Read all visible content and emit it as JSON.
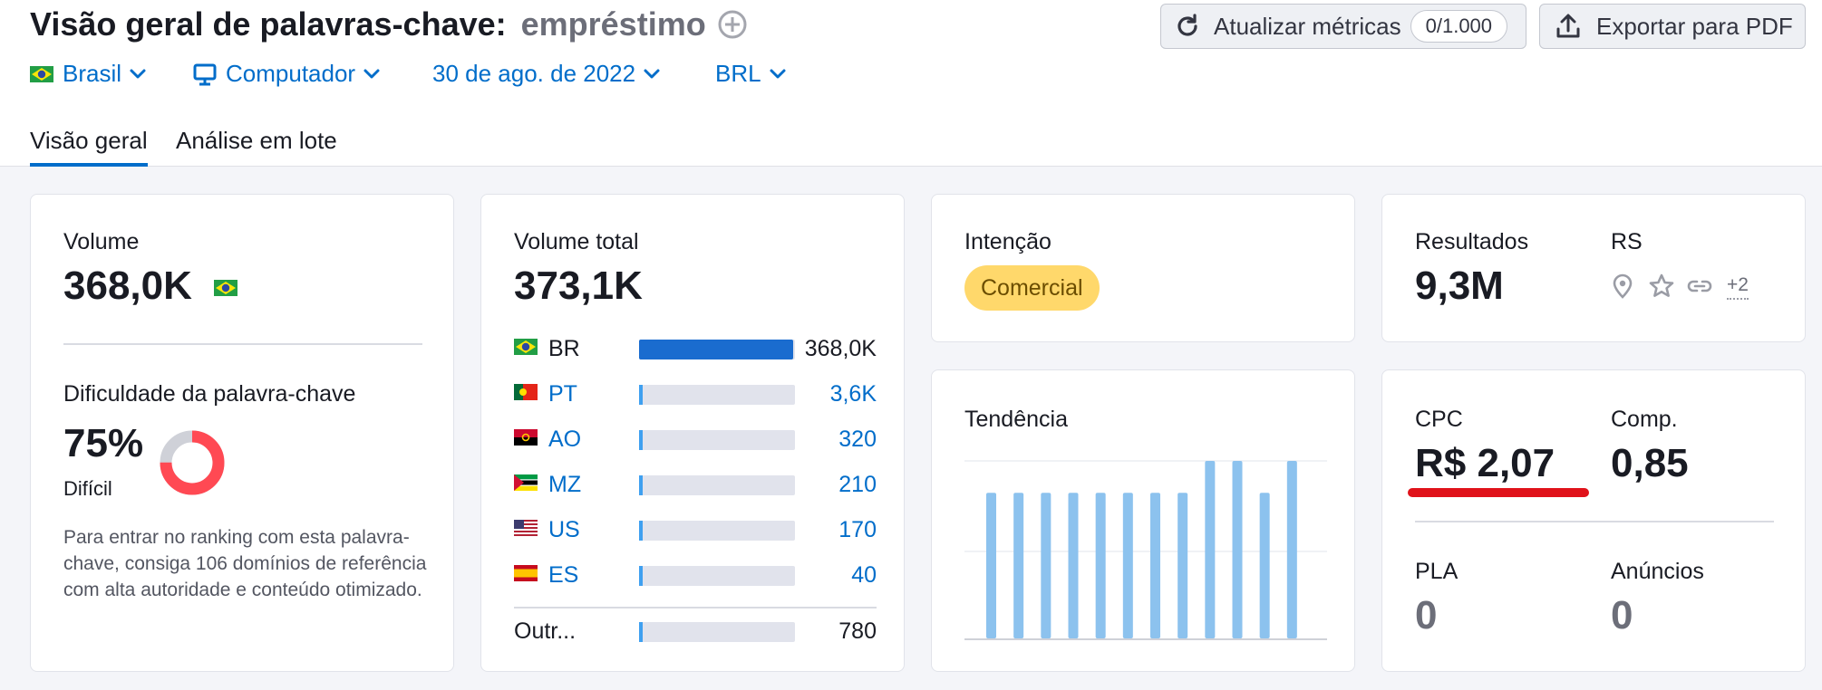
{
  "header": {
    "title": "Visão geral de palavras-chave:",
    "keyword": "empréstimo",
    "refresh_label": "Atualizar métricas",
    "refresh_counter": "0/1.000",
    "export_label": "Exportar para PDF"
  },
  "filters": {
    "country": "Brasil",
    "device": "Computador",
    "date": "30 de ago. de 2022",
    "currency": "BRL"
  },
  "tabs": [
    {
      "label": "Visão geral",
      "active": true
    },
    {
      "label": "Análise em lote",
      "active": false
    }
  ],
  "volume_card": {
    "label": "Volume",
    "value": "368,0K",
    "difficulty_label": "Dificuldade da palavra-chave",
    "difficulty_value": "75%",
    "difficulty_percent": 75,
    "difficulty_level": "Difícil",
    "description": "Para entrar no ranking com esta palavra-chave, consiga 106 domínios de referência com alta autoridade e conteúdo otimizado."
  },
  "total_volume_card": {
    "label": "Volume total",
    "value": "373,1K",
    "countries": [
      {
        "code": "BR",
        "value": "368,0K",
        "share": 0.986,
        "flag": "flag-brazil"
      },
      {
        "code": "PT",
        "value": "3,6K",
        "share": 0.01,
        "flag": "flag-portugal"
      },
      {
        "code": "AO",
        "value": "320",
        "share": 0.001,
        "flag": "flag-angola"
      },
      {
        "code": "MZ",
        "value": "210",
        "share": 0.001,
        "flag": "flag-mozambique"
      },
      {
        "code": "US",
        "value": "170",
        "share": 0.0005,
        "flag": "flag-usa"
      },
      {
        "code": "ES",
        "value": "40",
        "share": 0.0001,
        "flag": "flag-spain"
      }
    ],
    "others": {
      "label": "Outr...",
      "value": "780",
      "share": 0.002
    }
  },
  "intent_card": {
    "label": "Intenção",
    "badge": "Comercial"
  },
  "trend_card": {
    "label": "Tendência"
  },
  "results_card": {
    "results_label": "Resultados",
    "results_value": "9,3M",
    "serp_label": "RS",
    "serp_icons": [
      "location-pin-icon",
      "star-icon",
      "link-icon"
    ],
    "serp_more": "+2"
  },
  "cpc_card": {
    "cpc_label": "CPC",
    "cpc_value": "R$ 2,07",
    "comp_label": "Comp.",
    "comp_value": "0,85",
    "pla_label": "PLA",
    "pla_value": "0",
    "ads_label": "Anúncios",
    "ads_value": "0"
  },
  "colors": {
    "accent": "#006dca",
    "bar_primary": "#1a6ccf",
    "trend_bar": "#8cc2ee",
    "difficulty_red": "#ff4953",
    "badge_yellow": "#ffd86b",
    "underline_red": "#e0121a"
  },
  "chart_data": {
    "type": "bar",
    "values": [
      0.82,
      0.82,
      0.82,
      0.82,
      0.82,
      0.82,
      0.82,
      0.82,
      1.0,
      1.0,
      0.82,
      1.0
    ],
    "ylim": [
      0,
      1
    ]
  }
}
